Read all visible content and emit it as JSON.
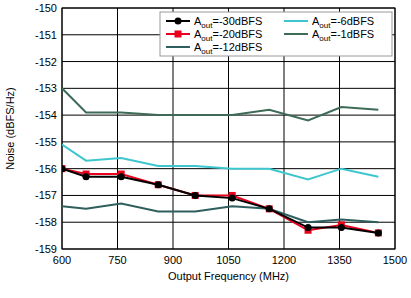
{
  "chart_data": {
    "type": "line",
    "x_label": "Output Frequency (MHz)",
    "y_label": "Noise (dBFS/Hz)",
    "x": [
      600,
      665,
      760,
      860,
      960,
      1060,
      1160,
      1265,
      1355,
      1455
    ],
    "series": [
      {
        "name": "Aout=-30dBFS",
        "color": "#000000",
        "marker": "circle",
        "values": [
          -156.0,
          -156.3,
          -156.3,
          -156.6,
          -157.0,
          -157.1,
          -157.5,
          -158.2,
          -158.2,
          -158.4
        ]
      },
      {
        "name": "Aout=-20dBFS",
        "color": "#e8001c",
        "marker": "square",
        "values": [
          -156.0,
          -156.2,
          -156.2,
          -156.6,
          -157.0,
          -157.0,
          -157.5,
          -158.3,
          -158.1,
          -158.4
        ]
      },
      {
        "name": "Aout=-12dBFS",
        "color": "#2e5f5e",
        "marker": "none",
        "values": [
          -157.4,
          -157.5,
          -157.3,
          -157.6,
          -157.6,
          -157.4,
          -157.5,
          -158.0,
          -157.9,
          -158.0
        ]
      },
      {
        "name": "Aout=-6dBFS",
        "color": "#3ec6cf",
        "marker": "none",
        "values": [
          -155.1,
          -155.7,
          -155.6,
          -155.9,
          -155.9,
          -156.0,
          -156.0,
          -156.4,
          -156.0,
          -156.3
        ]
      },
      {
        "name": "Aout=-1dBFS",
        "color": "#3d6b57",
        "marker": "none",
        "values": [
          -153.0,
          -153.9,
          -153.9,
          -154.0,
          -154.0,
          -154.0,
          -153.8,
          -154.2,
          -153.7,
          -153.8
        ]
      }
    ],
    "xlim": [
      600,
      1500
    ],
    "xticks": [
      600,
      750,
      900,
      1050,
      1200,
      1350,
      1500
    ],
    "ylim": [
      -159,
      -150
    ],
    "yticks": [
      -159,
      -158,
      -157,
      -156,
      -155,
      -154,
      -153,
      -152,
      -151,
      -150
    ],
    "grid": true,
    "legend": "top-right"
  }
}
